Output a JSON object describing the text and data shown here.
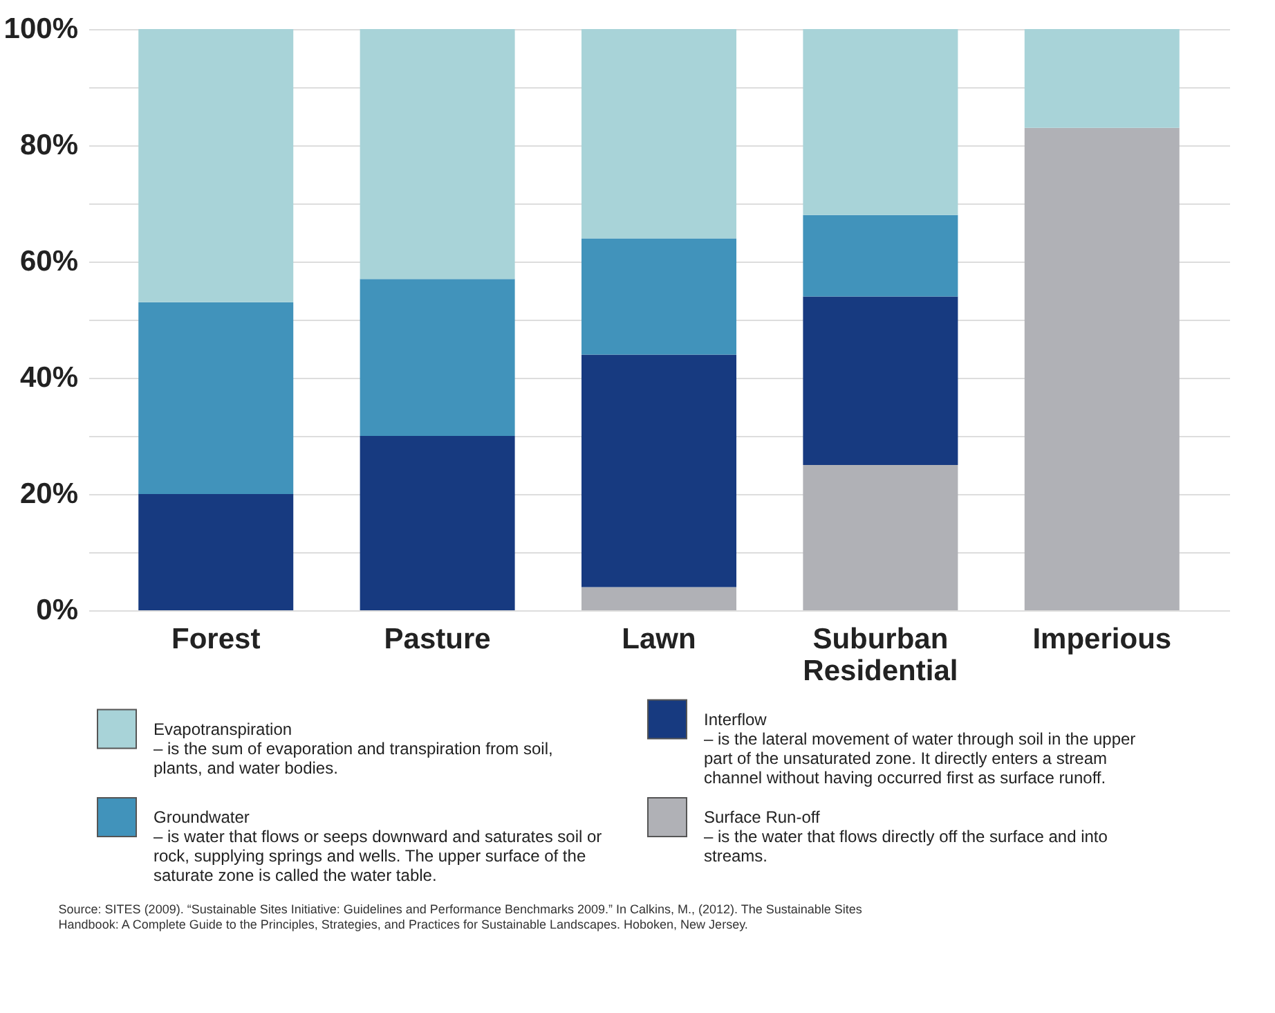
{
  "chart_data": {
    "type": "bar",
    "stacked": true,
    "categories": [
      "Forest",
      "Pasture",
      "Lawn",
      "Suburban Residential",
      "Imperious"
    ],
    "series": [
      {
        "name": "Surface Run-off",
        "color": "#b0b1b6",
        "values": [
          null,
          null,
          4,
          25,
          83
        ]
      },
      {
        "name": "Interflow",
        "color": "#173a80",
        "values": [
          20,
          30,
          40,
          29,
          null
        ]
      },
      {
        "name": "Groundwater",
        "color": "#4193bb",
        "values": [
          33,
          27,
          20,
          14,
          null
        ]
      },
      {
        "name": "Evapotranspiration",
        "color": "#a8d3d8",
        "values": [
          47,
          43,
          36,
          32,
          17
        ]
      }
    ],
    "ylim": [
      0,
      100
    ],
    "yticks": [
      {
        "value": 0,
        "label": "0%"
      },
      {
        "value": 10,
        "label": null
      },
      {
        "value": 20,
        "label": "20%"
      },
      {
        "value": 30,
        "label": null
      },
      {
        "value": 40,
        "label": "40%"
      },
      {
        "value": 50,
        "label": null
      },
      {
        "value": 60,
        "label": "60%"
      },
      {
        "value": 70,
        "label": null
      },
      {
        "value": 80,
        "label": "80%"
      },
      {
        "value": 90,
        "label": null
      },
      {
        "value": 100,
        "label": "100%"
      }
    ],
    "grid": "y",
    "legend": "bottom",
    "annotations": [
      "– is the water that flows directly off the surface and into streams.",
      "– is the lateral movement of water through soil in the upper part of the unsaturated zone. It directly enters a stream channel without having occurred first as surface runoff.",
      "– is water that flows or seeps downward and saturates soil or rock, supplying springs and wells. The upper surface of the saturate zone is called the water table.",
      "– is the sum of evaporation and transpiration from soil, plants, and water bodies.",
      "Source: SITES (2009). “Sustainable Sites Initiative: Guidelines and Performance Benchmarks 2009.” In Calkins, M., (2012). The Sustainable Sites Handbook: A Complete Guide to the Principles, Strategies, and Practices for Sustainable Landscapes. Hoboken, New Jersey."
    ]
  }
}
